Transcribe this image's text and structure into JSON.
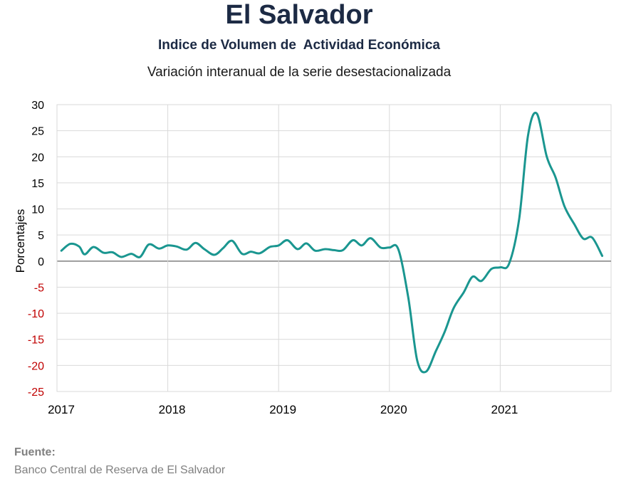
{
  "header": {
    "title": "El Salvador",
    "subtitle": "Indice de Volumen de  Actividad Económica",
    "subtitle2": "Variación interanual de la serie desestacionalizada"
  },
  "footer": {
    "source_label": "Fuente:",
    "source_text": "Banco Central de Reserva de El Salvador"
  },
  "chart_data": {
    "type": "line",
    "title": "Indice de Volumen de  Actividad Económica",
    "xlabel": "",
    "ylabel": "Porcentajes",
    "xlim": [
      2017,
      2022
    ],
    "ylim": [
      -25,
      30
    ],
    "x_ticks": [
      "2017",
      "2018",
      "2019",
      "2020",
      "2021"
    ],
    "y_ticks": [
      30,
      25,
      20,
      15,
      10,
      5,
      0,
      -5,
      -10,
      -15,
      -20,
      -25
    ],
    "grid": true,
    "colors": {
      "line": "#1a9690",
      "negative_tick": "#c00000",
      "positive_tick": "#000000",
      "zero_line": "#7f7f7f"
    },
    "series": [
      {
        "values": [
          [
            2017.04,
            2.0
          ],
          [
            2017.12,
            3.3
          ],
          [
            2017.2,
            2.8
          ],
          [
            2017.25,
            1.3
          ],
          [
            2017.33,
            2.7
          ],
          [
            2017.42,
            1.6
          ],
          [
            2017.5,
            1.7
          ],
          [
            2017.58,
            0.8
          ],
          [
            2017.67,
            1.4
          ],
          [
            2017.75,
            0.8
          ],
          [
            2017.83,
            3.2
          ],
          [
            2017.92,
            2.4
          ],
          [
            2018.0,
            3.0
          ],
          [
            2018.08,
            2.8
          ],
          [
            2018.17,
            2.2
          ],
          [
            2018.25,
            3.5
          ],
          [
            2018.33,
            2.3
          ],
          [
            2018.42,
            1.2
          ],
          [
            2018.5,
            2.5
          ],
          [
            2018.58,
            3.9
          ],
          [
            2018.67,
            1.4
          ],
          [
            2018.75,
            1.8
          ],
          [
            2018.83,
            1.5
          ],
          [
            2018.92,
            2.7
          ],
          [
            2019.0,
            3.0
          ],
          [
            2019.08,
            4.0
          ],
          [
            2019.17,
            2.3
          ],
          [
            2019.25,
            3.4
          ],
          [
            2019.33,
            2.0
          ],
          [
            2019.42,
            2.3
          ],
          [
            2019.5,
            2.1
          ],
          [
            2019.58,
            2.1
          ],
          [
            2019.67,
            4.0
          ],
          [
            2019.75,
            3.0
          ],
          [
            2019.83,
            4.4
          ],
          [
            2019.92,
            2.6
          ],
          [
            2020.0,
            2.6
          ],
          [
            2020.08,
            2.3
          ],
          [
            2020.17,
            -7.0
          ],
          [
            2020.25,
            -19.0
          ],
          [
            2020.33,
            -21.2
          ],
          [
            2020.42,
            -17.2
          ],
          [
            2020.5,
            -13.5
          ],
          [
            2020.58,
            -9.0
          ],
          [
            2020.67,
            -6.0
          ],
          [
            2020.75,
            -3.0
          ],
          [
            2020.83,
            -3.8
          ],
          [
            2020.92,
            -1.5
          ],
          [
            2021.0,
            -1.2
          ],
          [
            2021.08,
            -0.5
          ],
          [
            2021.17,
            8.0
          ],
          [
            2021.25,
            24.0
          ],
          [
            2021.33,
            28.3
          ],
          [
            2021.42,
            20.0
          ],
          [
            2021.5,
            16.0
          ],
          [
            2021.58,
            10.5
          ],
          [
            2021.67,
            7.0
          ],
          [
            2021.75,
            4.3
          ],
          [
            2021.83,
            4.5
          ],
          [
            2021.92,
            1.0
          ]
        ]
      }
    ]
  }
}
